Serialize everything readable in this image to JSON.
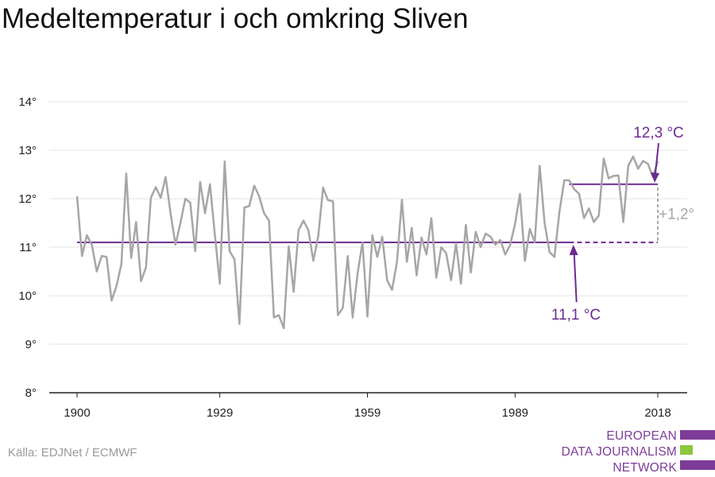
{
  "title": "Medeltemperatur i och omkring Sliven",
  "source": "Källa: EDJNet / ECMWF",
  "logo": {
    "lines": [
      "EUROPEAN",
      "DATA JOURNALISM",
      "NETWORK"
    ],
    "colors": {
      "text": "#7d3c98",
      "bar": "#7d3c98",
      "accent": "#8dc63f"
    }
  },
  "chart_data": {
    "type": "line",
    "title": "Medeltemperatur i och omkring Sliven",
    "xlabel": "",
    "ylabel": "",
    "x_range": [
      1900,
      2018
    ],
    "ylim": [
      8,
      14
    ],
    "y_ticks": [
      8,
      9,
      10,
      11,
      12,
      13,
      14
    ],
    "y_tick_labels": [
      "8°",
      "9°",
      "10°",
      "11°",
      "12°",
      "13°",
      "14°"
    ],
    "x_ticks": [
      1900,
      1929,
      1959,
      1989,
      2018
    ],
    "x_tick_labels": [
      "1900",
      "1929",
      "1959",
      "1989",
      "2018"
    ],
    "grid": true,
    "colors": {
      "series": "#a6a6a6",
      "reference": "#6b2b8f",
      "axis": "#222222",
      "grid": "#e3e3e3"
    },
    "series": [
      {
        "x": [
          1900,
          1901,
          1902,
          1903,
          1904,
          1905,
          1906,
          1907,
          1908,
          1909,
          1910,
          1911,
          1912,
          1913,
          1914,
          1915,
          1916,
          1917,
          1918,
          1919,
          1920,
          1921,
          1922,
          1923,
          1924,
          1925,
          1926,
          1927,
          1928,
          1929,
          1930,
          1931,
          1932,
          1933,
          1934,
          1935,
          1936,
          1937,
          1938,
          1939,
          1940,
          1941,
          1942,
          1943,
          1944,
          1945,
          1946,
          1947,
          1948,
          1949,
          1950,
          1951,
          1952,
          1953,
          1954,
          1955,
          1956,
          1957,
          1958,
          1959,
          1960,
          1961,
          1962,
          1963,
          1964,
          1965,
          1966,
          1967,
          1968,
          1969,
          1970,
          1971,
          1972,
          1973,
          1974,
          1975,
          1976,
          1977,
          1978,
          1979,
          1980,
          1981,
          1982,
          1983,
          1984,
          1985,
          1986,
          1987,
          1988,
          1989,
          1990,
          1991,
          1992,
          1993,
          1994,
          1995,
          1996,
          1997,
          1998,
          1999,
          2000,
          2001,
          2002,
          2003,
          2004,
          2005,
          2006,
          2007,
          2008,
          2009,
          2010,
          2011,
          2012,
          2013,
          2014,
          2015,
          2016,
          2017,
          2018
        ],
        "values": [
          12.05,
          10.82,
          11.25,
          11.05,
          10.5,
          10.82,
          10.8,
          9.9,
          10.2,
          10.65,
          12.52,
          10.78,
          11.52,
          10.3,
          10.58,
          12.02,
          12.24,
          12.02,
          12.45,
          11.7,
          11.05,
          11.5,
          12.0,
          11.92,
          10.92,
          12.35,
          11.7,
          12.3,
          11.25,
          10.25,
          12.77,
          10.92,
          10.75,
          9.42,
          11.82,
          11.85,
          12.27,
          12.05,
          11.7,
          11.55,
          9.55,
          9.6,
          9.33,
          11.02,
          10.08,
          11.35,
          11.55,
          11.35,
          10.72,
          11.23,
          12.23,
          11.97,
          11.95,
          9.6,
          9.75,
          10.82,
          9.55,
          10.46,
          11.1,
          9.57,
          11.25,
          10.8,
          11.22,
          10.32,
          10.12,
          10.7,
          11.98,
          10.7,
          11.4,
          10.42,
          11.2,
          10.85,
          11.6,
          10.37,
          11.0,
          10.88,
          10.32,
          11.08,
          10.25,
          11.46,
          10.48,
          11.32,
          11.0,
          11.28,
          11.22,
          11.05,
          11.15,
          10.85,
          11.05,
          11.48,
          12.1,
          10.72,
          11.38,
          11.1,
          12.68,
          11.5,
          10.9,
          10.8,
          11.72,
          12.38,
          12.38,
          12.2,
          12.1,
          11.6,
          11.8,
          11.52,
          11.65,
          12.83,
          12.42,
          12.47,
          12.48,
          11.52,
          12.68,
          12.87,
          12.62,
          12.78,
          12.72,
          12.45,
          12.78
        ]
      }
    ],
    "reference_lines": [
      {
        "label": "11,1 °C",
        "value": 11.1,
        "x_start": 1900,
        "x_end": 2018,
        "dashed_from": 2000
      },
      {
        "label": "12,3 °C",
        "value": 12.3,
        "x_start": 2000,
        "x_end": 2018
      }
    ],
    "difference_label": "+1,2°"
  }
}
